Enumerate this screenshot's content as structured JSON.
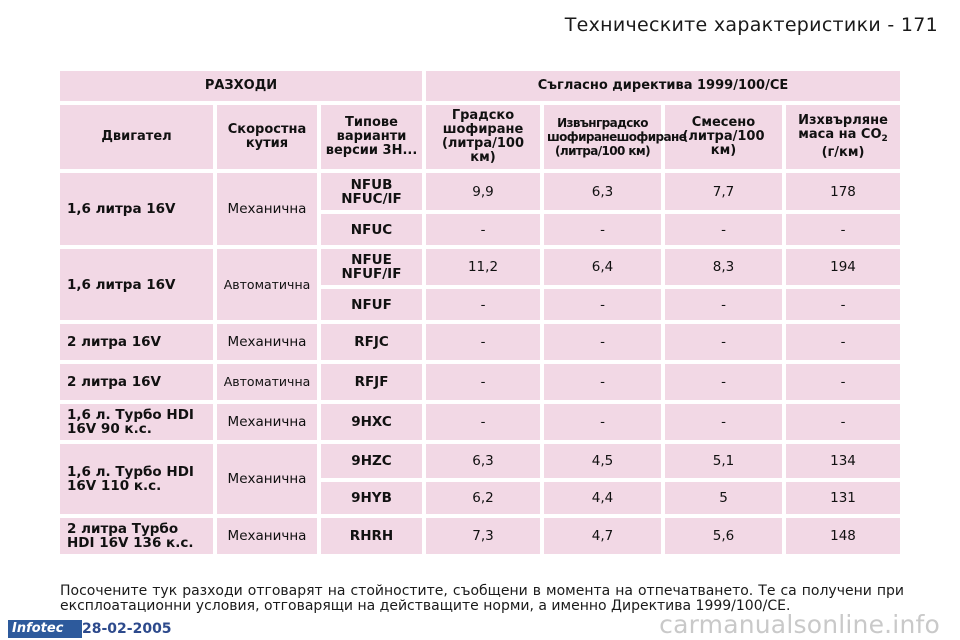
{
  "page_header": "Техническите характеристики - 171",
  "table": {
    "group_headers": {
      "consumption": "РАЗХОДИ",
      "directive": "Съгласно директива 1999/100/CE"
    },
    "columns": {
      "engine": "Двигател",
      "gearbox": "Скоростна кутия",
      "versions": "Типове варианти версии 3Н...",
      "urban": "Градско шофиране (литра/100 км)",
      "extra_urban": "Извънградско шофиранешофиране (литра/100 км)",
      "combined": "Смесено (литра/100 км)",
      "co2_prefix": "Изхвърляне маса на CO",
      "co2_sub": "2",
      "co2_suffix": " (г/км)"
    },
    "rows": [
      {
        "engine": "1,6 литра 16V",
        "gearbox": "Механична",
        "version": "NFUB NFUC/IF",
        "urban": "9,9",
        "extra_urban": "6,3",
        "combined": "7,7",
        "co2": "178"
      },
      {
        "version": "NFUC",
        "urban": "-",
        "extra_urban": "-",
        "combined": "-",
        "co2": "-"
      },
      {
        "engine": "1,6 литра 16V",
        "gearbox": "Автоматична",
        "version": "NFUE NFUF/IF",
        "urban": "11,2",
        "extra_urban": "6,4",
        "combined": "8,3",
        "co2": "194"
      },
      {
        "version": "NFUF",
        "urban": "-",
        "extra_urban": "-",
        "combined": "-",
        "co2": "-"
      },
      {
        "engine": "2 литра 16V",
        "gearbox": "Механична",
        "version": "RFJC",
        "urban": "-",
        "extra_urban": "-",
        "combined": "-",
        "co2": "-"
      },
      {
        "engine": "2 литра 16V",
        "gearbox": "Автоматична",
        "version": "RFJF",
        "urban": "-",
        "extra_urban": "-",
        "combined": "-",
        "co2": "-"
      },
      {
        "engine": "1,6 л. Турбо HDI 16V 90 к.с.",
        "gearbox": "Механична",
        "version": "9HXC",
        "urban": "-",
        "extra_urban": "-",
        "combined": "-",
        "co2": "-"
      },
      {
        "engine": "1,6 л. Турбо HDI 16V 110 к.с.",
        "gearbox": "Механична",
        "version": "9HZC",
        "urban": "6,3",
        "extra_urban": "4,5",
        "combined": "5,1",
        "co2": "134"
      },
      {
        "version": "9HYB",
        "urban": "6,2",
        "extra_urban": "4,4",
        "combined": "5",
        "co2": "131"
      },
      {
        "engine": "2 литра Турбо HDI 16V 136 к.с.",
        "gearbox": "Механична",
        "version": "RHRH",
        "urban": "7,3",
        "extra_urban": "4,7",
        "combined": "5,6",
        "co2": "148"
      }
    ]
  },
  "footnote": "Посочените тук разходи отговарят на стойностите, съобщени в момента на отпечатването. Те са получени при експлоатационни условия, отговарящи на действащите норми, а именно Директива 1999/100/CE.",
  "footer": {
    "logo": "Infotec",
    "date": "28-02-2005",
    "watermark": "carmanualsonline.info"
  }
}
